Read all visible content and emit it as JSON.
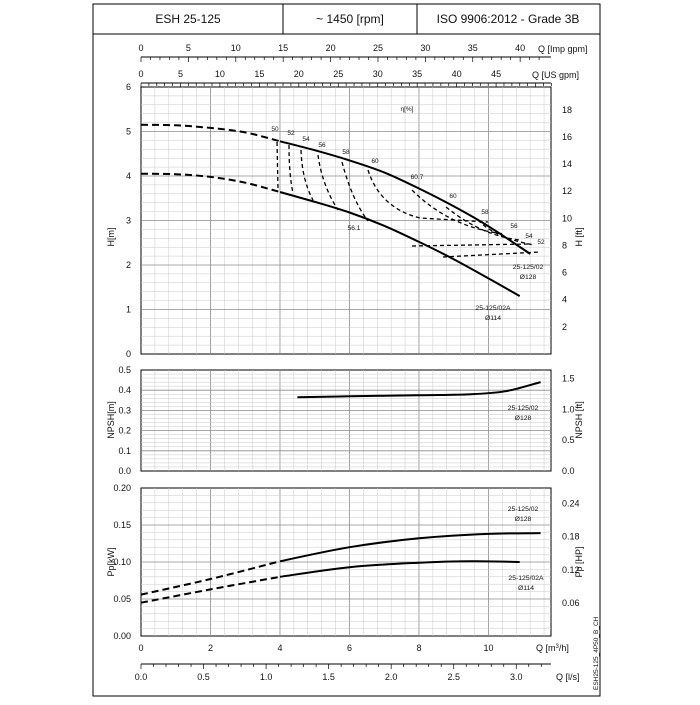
{
  "header": {
    "model": "ESH 25-125",
    "speed": "~ 1450 [rpm]",
    "standard": "ISO 9906:2012 - Grade 3B"
  },
  "axes": {
    "imp_gpm_label": "Q [Imp gpm]",
    "us_gpm_label": "Q [US gpm]",
    "q_m3h_label": "Q [m³/h]",
    "q_ls_label": "Q [l/s]",
    "h_m_label": "H[m]",
    "h_ft_label": "H [ft]",
    "npsh_m_label": "NPSH[m]",
    "npsh_ft_label": "NPSH [ft]",
    "p_kw_label": "Pp[kW]",
    "p_hp_label": "Pp [HP]",
    "eta_label": "η[%]",
    "imp_gpm_ticks": [
      "0",
      "5",
      "10",
      "15",
      "20",
      "25",
      "30",
      "35",
      "40"
    ],
    "us_gpm_ticks": [
      "0",
      "5",
      "10",
      "15",
      "20",
      "25",
      "30",
      "35",
      "40",
      "45"
    ],
    "q_m3h_ticks": [
      "0",
      "2",
      "4",
      "6",
      "8",
      "10"
    ],
    "q_ls_ticks": [
      "0.0",
      "0.5",
      "1.0",
      "1.5",
      "2.0",
      "2.5",
      "3.0"
    ],
    "h_m_ticks": [
      "0",
      "1",
      "2",
      "3",
      "4",
      "5",
      "6"
    ],
    "h_ft_ticks": [
      "2",
      "4",
      "6",
      "8",
      "10",
      "12",
      "14",
      "16",
      "18"
    ],
    "npsh_m_ticks": [
      "0.0",
      "0.1",
      "0.2",
      "0.3",
      "0.4",
      "0.5"
    ],
    "npsh_ft_ticks": [
      "0.0",
      "0.5",
      "1.0",
      "1.5"
    ],
    "p_kw_ticks": [
      "0.00",
      "0.05",
      "0.10",
      "0.15",
      "0.20"
    ],
    "p_hp_ticks": [
      "0.06",
      "0.12",
      "0.18",
      "0.24"
    ]
  },
  "labels": {
    "curve_02": [
      "25-125/02",
      "Ø128"
    ],
    "curve_02a": [
      "25-125/02A",
      "Ø114"
    ],
    "eff_upper": [
      "50",
      "52",
      "54",
      "56",
      "58",
      "60",
      "60.7",
      "60",
      "58",
      "56",
      "54",
      "52"
    ],
    "eff_lower": "56.1",
    "drawing_code": "ESH25-125_4P50_B_CH"
  },
  "chart_data": [
    {
      "type": "line",
      "title": "H[m]",
      "xlabel": "Q [m³/h]",
      "ylabel": "H[m]",
      "xlim": [
        0,
        11.8
      ],
      "ylim": [
        0,
        6
      ],
      "series": [
        {
          "name": "25-125/02 Ø128",
          "x": [
            0,
            1,
            2,
            3,
            4,
            5,
            6,
            7,
            8,
            9,
            10,
            11.2
          ],
          "y": [
            5.15,
            5.14,
            5.08,
            4.98,
            4.78,
            4.58,
            4.35,
            4.08,
            3.72,
            3.32,
            2.87,
            2.25
          ]
        },
        {
          "name": "25-125/02A Ø114",
          "x": [
            0,
            1,
            2,
            3,
            4,
            5,
            6,
            7,
            8,
            9,
            10,
            10.9
          ],
          "y": [
            4.05,
            4.04,
            3.98,
            3.85,
            3.64,
            3.42,
            3.18,
            2.88,
            2.52,
            2.13,
            1.7,
            1.3
          ]
        }
      ],
      "efficiency_percent": [
        50,
        52,
        54,
        56,
        58,
        60,
        60.7,
        56.1
      ]
    },
    {
      "type": "line",
      "title": "NPSH",
      "xlabel": "Q [m³/h]",
      "ylabel": "NPSH[m]",
      "xlim": [
        0,
        11.8
      ],
      "ylim": [
        0,
        0.5
      ],
      "series": [
        {
          "name": "25-125/02 Ø128",
          "x": [
            4.5,
            6,
            8,
            9.5,
            10.5,
            11.5
          ],
          "y": [
            0.365,
            0.37,
            0.375,
            0.38,
            0.395,
            0.44
          ]
        }
      ]
    },
    {
      "type": "line",
      "title": "Pp",
      "xlabel": "Q [m³/h]",
      "ylabel": "Pp[kW]",
      "xlim": [
        0,
        11.8
      ],
      "ylim": [
        0,
        0.2
      ],
      "series": [
        {
          "name": "25-125/02 Ø128",
          "x": [
            0,
            2,
            4,
            6,
            8,
            10,
            11.5
          ],
          "y": [
            0.056,
            0.077,
            0.101,
            0.12,
            0.132,
            0.138,
            0.139
          ]
        },
        {
          "name": "25-125/02A Ø114",
          "x": [
            0,
            2,
            4,
            6,
            8,
            9.5,
            10.9
          ],
          "y": [
            0.045,
            0.063,
            0.08,
            0.093,
            0.099,
            0.101,
            0.1
          ]
        }
      ]
    }
  ]
}
